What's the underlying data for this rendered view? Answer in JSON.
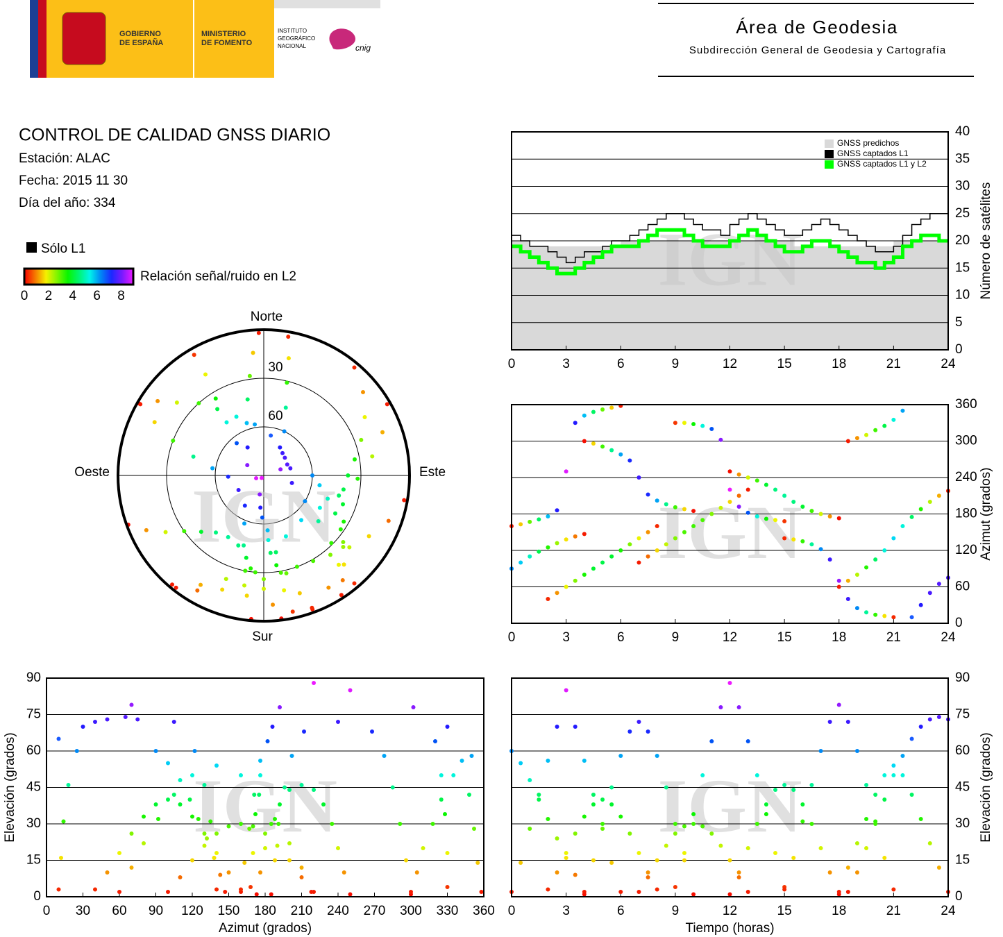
{
  "header": {
    "government": [
      "GOBIERNO",
      "DE ESPAÑA"
    ],
    "ministry": [
      "MINISTERIO",
      "DE FOMENTO"
    ],
    "institute": [
      "INSTITUTO",
      "GEOGRÁFICO",
      "NACIONAL"
    ],
    "cnig": "cnig",
    "area": "Área de Geodesia",
    "subdirectorate": "Subdirección General de Geodesia y Cartografía"
  },
  "report": {
    "title": "CONTROL DE CALIDAD GNSS DIARIO",
    "station": "Estación: ALAC",
    "date": "Fecha: 2015 11 30",
    "day_of_year": "Día del año: 334"
  },
  "legend": {
    "only_l1": "Sólo L1",
    "snr_label": "Relación señal/ruido en L2",
    "snr_ticks": [
      0,
      2,
      4,
      6,
      8
    ],
    "snr_lim": [
      0,
      9
    ]
  },
  "watermark": "IGN",
  "satellite_tracks": [
    {
      "time": [
        0,
        0.5,
        1,
        1.5,
        2,
        2.5,
        3,
        3.5,
        4,
        4.5,
        5,
        5.5,
        6
      ],
      "azimuth": [
        160,
        163,
        167,
        171,
        176,
        186,
        250,
        330,
        342,
        348,
        352,
        355,
        358
      ],
      "elevation": [
        2,
        14,
        28,
        42,
        56,
        70,
        85,
        70,
        56,
        42,
        28,
        14,
        2
      ],
      "snr": [
        0.2,
        1.5,
        2.9,
        4.4,
        5.9,
        7.4,
        8.9,
        7.4,
        5.9,
        4.4,
        2.9,
        1.5,
        0.2
      ]
    },
    {
      "time": [
        2,
        2.5,
        3,
        3.5,
        4,
        4.5,
        5,
        5.5,
        6,
        6.5,
        7,
        7.5,
        8
      ],
      "azimuth": [
        40,
        50,
        60,
        70,
        80,
        90,
        100,
        110,
        120,
        130,
        140,
        150,
        160
      ],
      "elevation": [
        3,
        10,
        18,
        26,
        33,
        38,
        40,
        38,
        33,
        26,
        18,
        10,
        3
      ],
      "snr": [
        0.3,
        1.1,
        1.9,
        2.7,
        3.5,
        4,
        4.2,
        4,
        3.5,
        2.7,
        1.9,
        1.1,
        0.3
      ]
    },
    {
      "time": [
        4,
        4.5,
        5,
        5.5,
        6,
        6.5,
        7,
        7.5,
        8,
        8.5,
        9,
        9.5,
        10
      ],
      "azimuth": [
        300,
        296,
        291,
        285,
        278,
        268,
        240,
        212,
        202,
        196,
        191,
        188,
        185
      ],
      "elevation": [
        1,
        15,
        30,
        45,
        58,
        68,
        72,
        68,
        58,
        45,
        30,
        15,
        1
      ],
      "snr": [
        0.1,
        1.6,
        3.2,
        4.7,
        6.1,
        7.2,
        7.6,
        7.2,
        6.1,
        4.7,
        3.2,
        1.6,
        0.1
      ]
    },
    {
      "time": [
        7,
        7.5,
        8,
        8.5,
        9,
        9.5,
        10,
        10.5,
        11,
        11.5,
        12,
        12.5,
        13
      ],
      "azimuth": [
        100,
        110,
        120,
        130,
        140,
        150,
        160,
        170,
        180,
        190,
        200,
        210,
        220
      ],
      "elevation": [
        2,
        8,
        15,
        21,
        26,
        29,
        30,
        29,
        26,
        21,
        15,
        8,
        2
      ],
      "snr": [
        0.2,
        0.8,
        1.6,
        2.2,
        2.7,
        3.1,
        3.2,
        3.1,
        2.7,
        2.2,
        1.6,
        0.8,
        0.2
      ]
    },
    {
      "time": [
        9,
        9.5,
        10,
        10.5,
        11,
        11.5,
        12,
        12.5,
        13,
        13.5,
        14,
        14.5,
        15
      ],
      "azimuth": [
        330,
        330,
        328,
        325,
        320,
        302,
        220,
        192,
        182,
        176,
        172,
        170,
        168
      ],
      "elevation": [
        4,
        18,
        34,
        50,
        64,
        78,
        88,
        78,
        64,
        50,
        34,
        18,
        4
      ],
      "snr": [
        0.4,
        1.9,
        3.6,
        5.3,
        6.7,
        8.2,
        9,
        8.2,
        6.7,
        5.3,
        3.6,
        1.9,
        0.4
      ]
    },
    {
      "time": [
        12,
        12.5,
        13,
        13.5,
        14,
        14.5,
        15,
        15.5,
        16,
        16.5,
        17,
        17.5,
        18
      ],
      "azimuth": [
        250,
        245,
        240,
        235,
        228,
        220,
        210,
        200,
        192,
        185,
        180,
        176,
        173
      ],
      "elevation": [
        1,
        10,
        20,
        30,
        38,
        44,
        46,
        44,
        38,
        30,
        20,
        10,
        1
      ],
      "snr": [
        0.1,
        1.1,
        2.1,
        3.2,
        4,
        4.6,
        4.8,
        4.6,
        4,
        3.2,
        2.1,
        1.1,
        0.1
      ]
    },
    {
      "time": [
        15,
        15.5,
        16,
        16.5,
        17,
        17.5,
        18,
        18.5,
        19,
        19.5,
        20,
        20.5,
        21
      ],
      "azimuth": [
        140,
        138,
        135,
        130,
        122,
        105,
        70,
        40,
        25,
        18,
        14,
        12,
        10
      ],
      "elevation": [
        3,
        16,
        31,
        46,
        60,
        72,
        79,
        72,
        60,
        46,
        31,
        16,
        3
      ],
      "snr": [
        0.3,
        1.7,
        3.3,
        4.8,
        6.3,
        7.6,
        8.3,
        7.6,
        6.3,
        4.8,
        3.3,
        1.7,
        0.3
      ]
    },
    {
      "time": [
        18,
        18.5,
        19,
        19.5,
        20,
        20.5,
        21,
        21.5,
        22,
        22.5,
        23,
        23.5,
        24
      ],
      "azimuth": [
        60,
        70,
        80,
        92,
        105,
        120,
        140,
        160,
        175,
        188,
        200,
        210,
        218
      ],
      "elevation": [
        2,
        12,
        22,
        32,
        42,
        50,
        54,
        50,
        42,
        32,
        22,
        12,
        2
      ],
      "snr": [
        0.2,
        1.3,
        2.3,
        3.4,
        4.4,
        5.3,
        5.7,
        5.3,
        4.4,
        3.4,
        2.3,
        1.3,
        0.2
      ]
    },
    {
      "time": [
        0,
        0.5,
        1,
        1.5,
        2,
        2.5,
        3,
        3.5,
        4
      ],
      "azimuth": [
        90,
        100,
        110,
        118,
        125,
        132,
        138,
        143,
        147
      ],
      "elevation": [
        60,
        55,
        48,
        40,
        32,
        24,
        16,
        9,
        2
      ],
      "snr": [
        6.3,
        5.8,
        5.1,
        4.2,
        3.4,
        2.5,
        1.7,
        0.9,
        0.2
      ]
    },
    {
      "time": [
        18.5,
        19,
        19.5,
        20,
        20.5,
        21,
        21.5,
        22,
        22.5,
        23,
        23.5,
        24
      ],
      "azimuth": [
        300,
        305,
        310,
        318,
        325,
        335,
        350,
        10,
        30,
        50,
        65,
        75
      ],
      "elevation": [
        2,
        10,
        20,
        30,
        40,
        50,
        58,
        65,
        70,
        73,
        74,
        73
      ],
      "snr": [
        0.2,
        1.1,
        2.1,
        3.2,
        4.2,
        5.3,
        6.1,
        6.8,
        7.4,
        7.7,
        7.8,
        7.7
      ]
    }
  ],
  "chart_data": [
    {
      "type": "polar",
      "labels": {
        "north": "Norte",
        "south": "Sur",
        "east": "Este",
        "west": "Oeste"
      },
      "elevation_lim": [
        0,
        90
      ],
      "rings": [
        30,
        60
      ]
    },
    {
      "type": "step",
      "ylabel": "Número de satélites",
      "x": [
        0,
        0.5,
        1,
        1.5,
        2,
        2.5,
        3,
        3.5,
        4,
        4.5,
        5,
        5.5,
        6,
        6.5,
        7,
        7.5,
        8,
        8.5,
        9,
        9.5,
        10,
        10.5,
        11,
        11.5,
        12,
        12.5,
        13,
        13.5,
        14,
        14.5,
        15,
        15.5,
        16,
        16.5,
        17,
        17.5,
        18,
        18.5,
        19,
        19.5,
        20,
        20.5,
        21,
        21.5,
        22,
        22.5,
        23,
        23.5,
        24
      ],
      "series": [
        {
          "name": "GNSS predichos",
          "color": "#d9d9d9",
          "values": [
            20,
            20,
            19,
            19,
            19,
            19,
            19,
            19,
            19,
            19,
            19,
            19,
            20,
            20,
            20,
            20,
            20,
            20,
            20,
            20,
            20,
            20,
            20,
            20,
            20,
            20,
            20,
            20,
            20,
            20,
            20,
            19,
            19,
            19,
            19,
            19,
            19,
            19,
            19,
            19,
            19,
            19,
            20,
            20,
            20,
            20,
            20,
            20,
            20
          ]
        },
        {
          "name": "GNSS captados L1",
          "color": "#000000",
          "values": [
            21,
            20,
            19,
            19,
            18,
            17,
            16,
            17,
            18,
            18,
            19,
            20,
            20,
            21,
            22,
            23,
            24,
            25,
            25,
            24,
            23,
            22,
            22,
            21,
            23,
            24,
            25,
            24,
            23,
            22,
            21,
            21,
            22,
            23,
            24,
            23,
            22,
            21,
            20,
            19,
            18,
            18,
            19,
            21,
            23,
            24,
            25,
            25,
            24
          ]
        },
        {
          "name": "GNSS captados L1 y L2",
          "color": "#00ff00",
          "values": [
            19,
            18,
            17,
            16,
            15,
            14,
            14,
            15,
            16,
            17,
            18,
            19,
            19,
            19,
            20,
            21,
            22,
            22,
            22,
            21,
            20,
            19,
            19,
            19,
            20,
            21,
            22,
            21,
            20,
            19,
            18,
            18,
            19,
            20,
            20,
            19,
            18,
            17,
            16,
            16,
            15,
            16,
            17,
            19,
            20,
            21,
            21,
            20,
            20
          ]
        }
      ],
      "xlim": [
        0,
        24
      ],
      "xticks": [
        0,
        3,
        6,
        9,
        12,
        15,
        18,
        21,
        24
      ],
      "ylim": [
        0,
        40
      ],
      "yticks": [
        0,
        5,
        10,
        15,
        20,
        25,
        30,
        35,
        40
      ],
      "grid": true,
      "yaxis_position": "right",
      "legend": "upper right"
    },
    {
      "type": "scatter",
      "ylabel": "Azimut (grados)",
      "xlim": [
        0,
        24
      ],
      "xticks": [
        0,
        3,
        6,
        9,
        12,
        15,
        18,
        21,
        24
      ],
      "ylim": [
        0,
        360
      ],
      "yticks": [
        0,
        60,
        120,
        180,
        240,
        300,
        360
      ],
      "grid": true,
      "yaxis_position": "right"
    },
    {
      "type": "scatter",
      "xlabel": "Azimut (grados)",
      "ylabel": "Elevación (grados)",
      "xlim": [
        0,
        360
      ],
      "xticks": [
        0,
        30,
        60,
        90,
        120,
        150,
        180,
        210,
        240,
        270,
        300,
        330,
        360
      ],
      "ylim": [
        0,
        90
      ],
      "yticks": [
        0,
        15,
        30,
        45,
        60,
        75,
        90
      ],
      "grid": true,
      "yaxis_position": "left"
    },
    {
      "type": "scatter",
      "xlabel": "Tiempo (horas)",
      "ylabel": "Elevación (grados)",
      "xlim": [
        0,
        24
      ],
      "xticks": [
        0,
        3,
        6,
        9,
        12,
        15,
        18,
        21,
        24
      ],
      "ylim": [
        0,
        90
      ],
      "yticks": [
        0,
        15,
        30,
        45,
        60,
        75,
        90
      ],
      "grid": true,
      "yaxis_position": "right"
    }
  ]
}
